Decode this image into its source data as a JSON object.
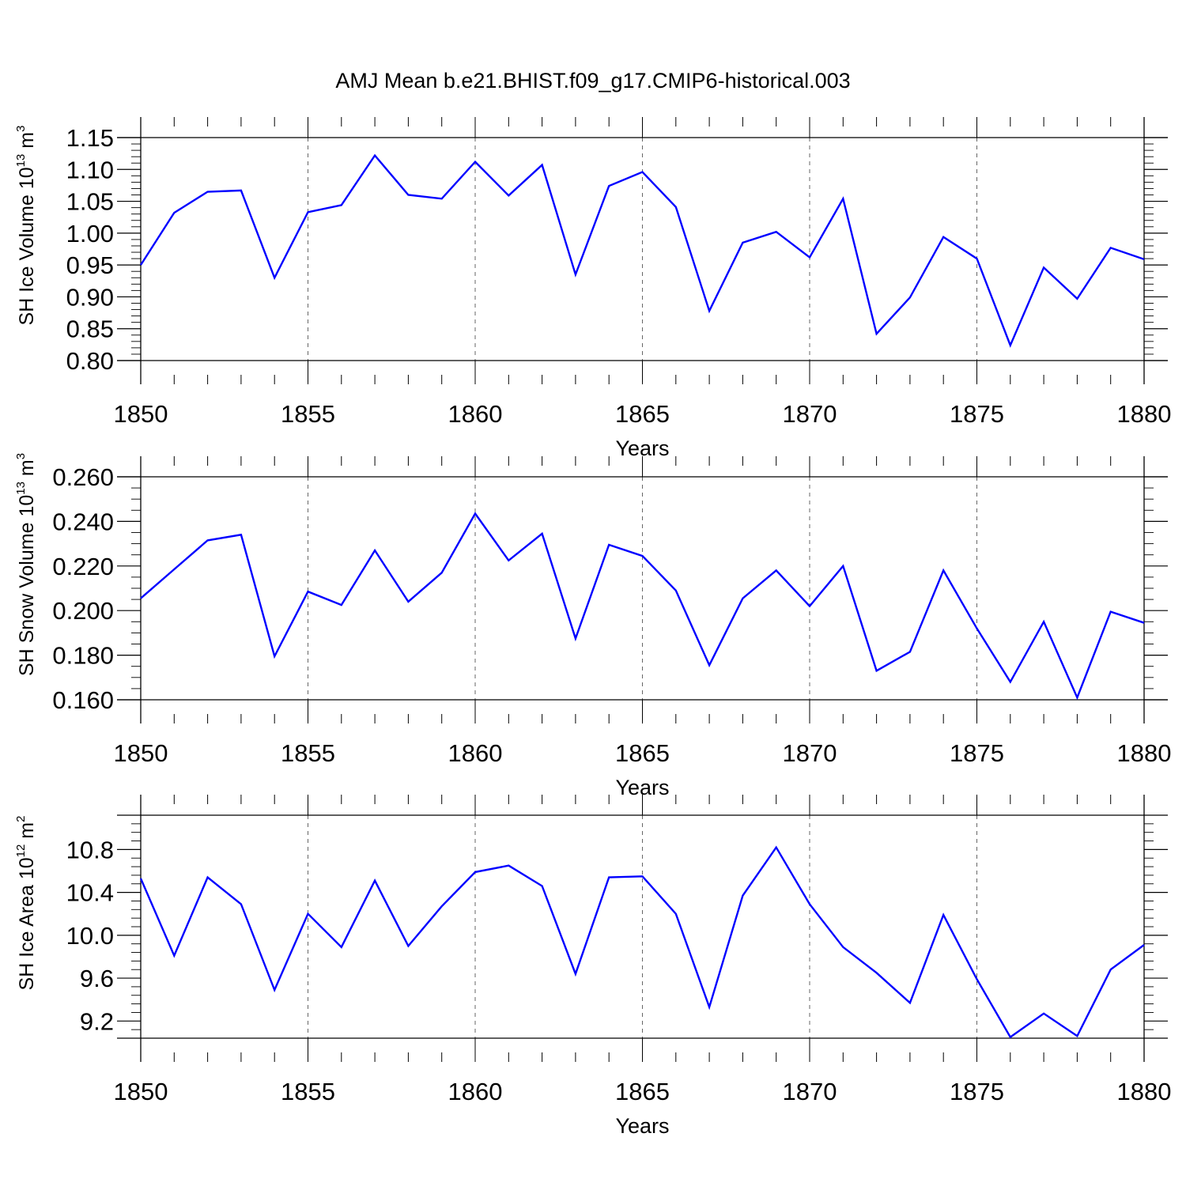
{
  "figure": {
    "title": "AMJ Mean b.e21.BHIST.f09_g17.CMIP6-historical.003"
  },
  "chart_data": [
    {
      "type": "line",
      "ylabel": "SH Ice Volume 10",
      "ylabel_exp": "13",
      "ylabel_unit": " m",
      "ylabel_unit_exp": "3",
      "xlabel": "Years",
      "xlim": [
        1850,
        1880
      ],
      "ylim": [
        0.8,
        1.15
      ],
      "yticks": [
        0.8,
        0.85,
        0.9,
        0.95,
        1.0,
        1.05,
        1.1,
        1.15
      ],
      "ytick_labels": [
        "0.80",
        "0.85",
        "0.90",
        "0.95",
        "1.00",
        "1.05",
        "1.10",
        "1.15"
      ],
      "yminor_step": 0.01,
      "xticks": [
        1850,
        1855,
        1860,
        1865,
        1870,
        1875,
        1880
      ],
      "xtick_labels": [
        "1850",
        "1855",
        "1860",
        "1865",
        "1870",
        "1875",
        "1880"
      ],
      "grid": "vertical-dashed",
      "series_color": "#0000ff",
      "x": [
        1850,
        1851,
        1852,
        1853,
        1854,
        1855,
        1856,
        1857,
        1858,
        1859,
        1860,
        1861,
        1862,
        1863,
        1864,
        1865,
        1866,
        1867,
        1868,
        1869,
        1870,
        1871,
        1872,
        1873,
        1874,
        1875,
        1876,
        1877,
        1878,
        1879,
        1880
      ],
      "values": [
        0.95,
        1.032,
        1.065,
        1.067,
        0.93,
        1.033,
        1.044,
        1.122,
        1.06,
        1.054,
        1.112,
        1.059,
        1.107,
        0.935,
        1.074,
        1.096,
        1.041,
        0.878,
        0.985,
        1.002,
        0.962,
        1.054,
        0.842,
        0.899,
        0.994,
        0.96,
        0.824,
        0.946,
        0.897,
        0.977,
        0.959
      ]
    },
    {
      "type": "line",
      "ylabel": "SH Snow Volume 10",
      "ylabel_exp": "13",
      "ylabel_unit": " m",
      "ylabel_unit_exp": "3",
      "xlabel": "Years",
      "xlim": [
        1850,
        1880
      ],
      "ylim": [
        0.16,
        0.26
      ],
      "yticks": [
        0.16,
        0.18,
        0.2,
        0.22,
        0.24,
        0.26
      ],
      "ytick_labels": [
        "0.160",
        "0.180",
        "0.200",
        "0.220",
        "0.240",
        "0.260"
      ],
      "yminor_step": 0.005,
      "xticks": [
        1850,
        1855,
        1860,
        1865,
        1870,
        1875,
        1880
      ],
      "xtick_labels": [
        "1850",
        "1855",
        "1860",
        "1865",
        "1870",
        "1875",
        "1880"
      ],
      "grid": "vertical-dashed",
      "series_color": "#0000ff",
      "x": [
        1850,
        1851,
        1852,
        1853,
        1854,
        1855,
        1856,
        1857,
        1858,
        1859,
        1860,
        1861,
        1862,
        1863,
        1864,
        1865,
        1866,
        1867,
        1868,
        1869,
        1870,
        1871,
        1872,
        1873,
        1874,
        1875,
        1876,
        1877,
        1878,
        1879,
        1880
      ],
      "values": [
        0.2055,
        0.2185,
        0.2315,
        0.234,
        0.1795,
        0.2085,
        0.2025,
        0.227,
        0.204,
        0.217,
        0.2435,
        0.2225,
        0.2345,
        0.1875,
        0.2295,
        0.2245,
        0.209,
        0.1755,
        0.2055,
        0.218,
        0.202,
        0.22,
        0.173,
        0.1815,
        0.218,
        0.192,
        0.168,
        0.195,
        0.161,
        0.1995,
        0.1945
      ]
    },
    {
      "type": "line",
      "ylabel": "SH Ice Area 10",
      "ylabel_exp": "12",
      "ylabel_unit": " m",
      "ylabel_unit_exp": "2",
      "xlabel": "Years",
      "xlim": [
        1850,
        1880
      ],
      "ylim": [
        9.04,
        11.12
      ],
      "yticks": [
        9.2,
        9.6,
        10.0,
        10.4,
        10.8
      ],
      "ytick_labels": [
        "9.2",
        "9.6",
        "10.0",
        "10.4",
        "10.8"
      ],
      "yminor_step": 0.08,
      "xticks": [
        1850,
        1855,
        1860,
        1865,
        1870,
        1875,
        1880
      ],
      "xtick_labels": [
        "1850",
        "1855",
        "1860",
        "1865",
        "1870",
        "1875",
        "1880"
      ],
      "grid": "vertical-dashed",
      "series_color": "#0000ff",
      "x": [
        1850,
        1851,
        1852,
        1853,
        1854,
        1855,
        1856,
        1857,
        1858,
        1859,
        1860,
        1861,
        1862,
        1863,
        1864,
        1865,
        1866,
        1867,
        1868,
        1869,
        1870,
        1871,
        1872,
        1873,
        1874,
        1875,
        1876,
        1877,
        1878,
        1879,
        1880
      ],
      "values": [
        10.53,
        9.81,
        10.54,
        10.29,
        9.49,
        10.2,
        9.89,
        10.51,
        9.9,
        10.27,
        10.59,
        10.65,
        10.46,
        9.64,
        10.54,
        10.55,
        10.2,
        9.33,
        10.37,
        10.82,
        10.29,
        9.89,
        9.65,
        9.37,
        10.19,
        9.59,
        9.05,
        9.27,
        9.06,
        9.68,
        9.91
      ]
    }
  ]
}
